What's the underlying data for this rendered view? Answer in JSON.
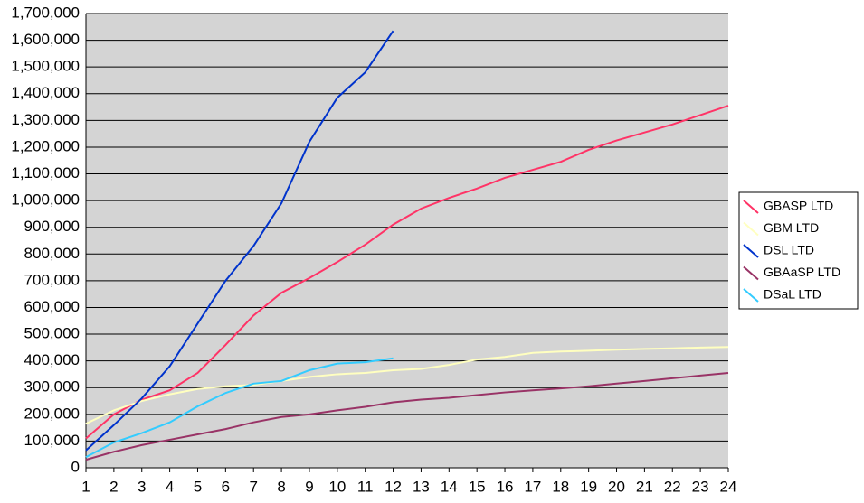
{
  "chart_data": {
    "type": "line",
    "x": [
      1,
      2,
      3,
      4,
      5,
      6,
      7,
      8,
      9,
      10,
      11,
      12,
      13,
      14,
      15,
      16,
      17,
      18,
      19,
      20,
      21,
      22,
      23,
      24
    ],
    "xlim": [
      1,
      24
    ],
    "xticks": [
      1,
      2,
      3,
      4,
      5,
      6,
      7,
      8,
      9,
      10,
      11,
      12,
      13,
      14,
      15,
      16,
      17,
      18,
      19,
      20,
      21,
      22,
      23,
      24
    ],
    "ylim": [
      0,
      1700000
    ],
    "yticks": [
      0,
      {
        "value": 100000,
        "label": "100,000"
      },
      {
        "value": 200000,
        "label": "200,000"
      },
      {
        "value": 300000,
        "label": "300,000"
      },
      {
        "value": 400000,
        "label": "400,000"
      },
      {
        "value": 500000,
        "label": "500,000"
      },
      {
        "value": 600000,
        "label": "600,000"
      },
      {
        "value": 700000,
        "label": "700,000"
      },
      {
        "value": 800000,
        "label": "800,000"
      },
      {
        "value": 900000,
        "label": "900,000"
      },
      {
        "value": 1000000,
        "label": "1,000,000"
      },
      {
        "value": 1100000,
        "label": "1,100,000"
      },
      {
        "value": 1200000,
        "label": "1,200,000"
      },
      {
        "value": 1300000,
        "label": "1,300,000"
      },
      {
        "value": 1400000,
        "label": "1,400,000"
      },
      {
        "value": 1500000,
        "label": "1,500,000"
      },
      {
        "value": 1600000,
        "label": "1,600,000"
      },
      {
        "value": 1700000,
        "label": "1,700,000"
      }
    ],
    "grid": true,
    "legend": "right",
    "series": [
      {
        "name": "GBASP LTD",
        "color": "#ff3366",
        "values": [
          110000,
          200000,
          255000,
          290000,
          355000,
          460000,
          570000,
          655000,
          710000,
          770000,
          835000,
          910000,
          970000,
          1010000,
          1045000,
          1085000,
          1115000,
          1145000,
          1190000,
          1225000,
          1255000,
          1285000,
          1320000,
          1355000
        ]
      },
      {
        "name": "GBM LTD",
        "color": "#ffffc0",
        "values": [
          165000,
          215000,
          250000,
          275000,
          295000,
          305000,
          310000,
          325000,
          340000,
          350000,
          355000,
          365000,
          370000,
          385000,
          405000,
          415000,
          430000,
          435000,
          438000,
          442000,
          445000,
          447000,
          450000,
          452000
        ]
      },
      {
        "name": "DSL LTD",
        "color": "#0033cc",
        "values": [
          65000,
          160000,
          260000,
          380000,
          540000,
          700000,
          830000,
          990000,
          1220000,
          1385000,
          1480000,
          1635000,
          null,
          null,
          null,
          null,
          null,
          null,
          null,
          null,
          null,
          null,
          null,
          null
        ]
      },
      {
        "name": "GBAaSP LTD",
        "color": "#993366",
        "values": [
          30000,
          60000,
          85000,
          105000,
          125000,
          145000,
          170000,
          190000,
          200000,
          215000,
          228000,
          245000,
          255000,
          262000,
          272000,
          282000,
          290000,
          297000,
          305000,
          315000,
          325000,
          335000,
          345000,
          355000
        ]
      },
      {
        "name": "DSaL LTD",
        "color": "#33ccff",
        "values": [
          40000,
          95000,
          130000,
          170000,
          230000,
          280000,
          315000,
          325000,
          365000,
          390000,
          395000,
          410000,
          null,
          null,
          null,
          null,
          null,
          null,
          null,
          null,
          null,
          null,
          null,
          null
        ]
      }
    ]
  }
}
